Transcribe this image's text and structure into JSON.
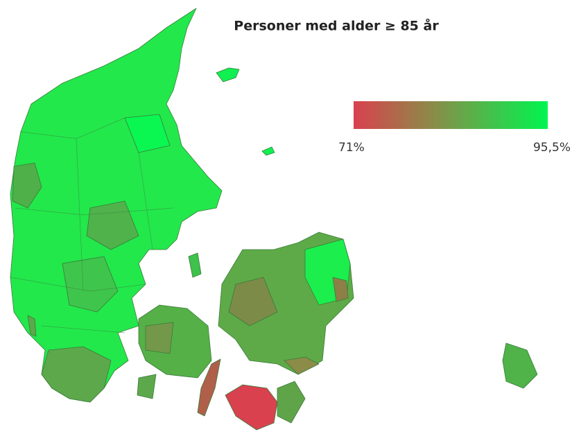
{
  "title": "Personer med alder ≥ 85 år",
  "legend": {
    "min_label": "71%",
    "max_label": "95,5%",
    "min_color": "#d9414e",
    "max_color": "#00f54f"
  }
}
